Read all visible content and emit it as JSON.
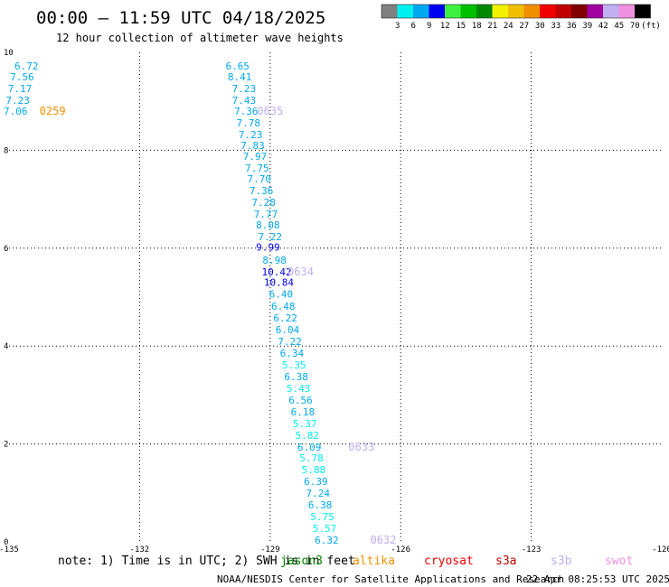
{
  "header": {
    "title": "00:00 – 11:59 UTC 04/18/2025",
    "subtitle": "12 hour collection of altimeter wave heights"
  },
  "colorbar": {
    "unit": "(ft)",
    "bins": [
      {
        "label": "3",
        "color": "#808080"
      },
      {
        "label": "6",
        "color": "#00f0f0"
      },
      {
        "label": "9",
        "color": "#00a8f0"
      },
      {
        "label": "12",
        "color": "#0000f0"
      },
      {
        "label": "15",
        "color": "#40f040"
      },
      {
        "label": "18",
        "color": "#00c000"
      },
      {
        "label": "21",
        "color": "#008800"
      },
      {
        "label": "24",
        "color": "#f0f000"
      },
      {
        "label": "27",
        "color": "#f0c000"
      },
      {
        "label": "30",
        "color": "#f09000"
      },
      {
        "label": "33",
        "color": "#f00000"
      },
      {
        "label": "36",
        "color": "#c00000"
      },
      {
        "label": "39",
        "color": "#800000"
      },
      {
        "label": "42",
        "color": "#a000a0"
      },
      {
        "label": "45",
        "color": "#c0b0f0"
      },
      {
        "label": "70",
        "color": "#f090e0"
      },
      {
        "label": "",
        "color": "#000000"
      }
    ]
  },
  "chart_data": {
    "type": "scatter",
    "xlim": [
      -135,
      -120
    ],
    "ylim": [
      0,
      10
    ],
    "x_ticks": [
      "-135",
      "-132",
      "-129",
      "-126",
      "-123",
      "-120"
    ],
    "y_ticks": [
      "0",
      "2",
      "4",
      "6",
      "8",
      "10"
    ],
    "grid": true,
    "points": [
      {
        "x": -134.6,
        "y": 9.72,
        "v": "6.72",
        "color": "#00a8f0"
      },
      {
        "x": -134.7,
        "y": 9.5,
        "v": "7.56",
        "color": "#00a8f0"
      },
      {
        "x": -134.75,
        "y": 9.26,
        "v": "7.17",
        "color": "#00a8f0"
      },
      {
        "x": -134.8,
        "y": 9.02,
        "v": "7.23",
        "color": "#00a8f0"
      },
      {
        "x": -134.85,
        "y": 8.8,
        "v": "7.06",
        "color": "#00a8f0"
      },
      {
        "x": -129.75,
        "y": 9.72,
        "v": "6.65",
        "color": "#00a8f0"
      },
      {
        "x": -129.7,
        "y": 9.5,
        "v": "8.41",
        "color": "#00a8f0"
      },
      {
        "x": -129.6,
        "y": 9.26,
        "v": "7.23",
        "color": "#00a8f0"
      },
      {
        "x": -129.6,
        "y": 9.02,
        "v": "7.43",
        "color": "#00a8f0"
      },
      {
        "x": -129.55,
        "y": 8.8,
        "v": "7.36",
        "color": "#00a8f0"
      },
      {
        "x": -129.5,
        "y": 8.56,
        "v": "7.78",
        "color": "#00a8f0"
      },
      {
        "x": -129.45,
        "y": 8.32,
        "v": "7.23",
        "color": "#00a8f0"
      },
      {
        "x": -129.4,
        "y": 8.1,
        "v": "7.83",
        "color": "#00a8f0"
      },
      {
        "x": -129.35,
        "y": 7.88,
        "v": "7.97",
        "color": "#00a8f0"
      },
      {
        "x": -129.3,
        "y": 7.64,
        "v": "7.75",
        "color": "#00a8f0"
      },
      {
        "x": -129.25,
        "y": 7.42,
        "v": "7.70",
        "color": "#00a8f0"
      },
      {
        "x": -129.2,
        "y": 7.18,
        "v": "7.36",
        "color": "#00a8f0"
      },
      {
        "x": -129.15,
        "y": 6.94,
        "v": "7.28",
        "color": "#00a8f0"
      },
      {
        "x": -129.1,
        "y": 6.7,
        "v": "7.77",
        "color": "#00a8f0"
      },
      {
        "x": -129.05,
        "y": 6.48,
        "v": "8.08",
        "color": "#00a8f0"
      },
      {
        "x": -129.0,
        "y": 6.24,
        "v": "7.22",
        "color": "#00a8f0"
      },
      {
        "x": -129.05,
        "y": 6.02,
        "v": "9.99",
        "color": "#0000f0"
      },
      {
        "x": -128.9,
        "y": 5.76,
        "v": "8.98",
        "color": "#00a8f0"
      },
      {
        "x": -128.85,
        "y": 5.52,
        "v": "10.42",
        "color": "#0000f0"
      },
      {
        "x": -128.8,
        "y": 5.3,
        "v": "10.84",
        "color": "#0000f0"
      },
      {
        "x": -128.75,
        "y": 5.06,
        "v": "6.40",
        "color": "#00a8f0"
      },
      {
        "x": -128.7,
        "y": 4.82,
        "v": "6.48",
        "color": "#00a8f0"
      },
      {
        "x": -128.65,
        "y": 4.58,
        "v": "6.22",
        "color": "#00a8f0"
      },
      {
        "x": -128.6,
        "y": 4.34,
        "v": "6.04",
        "color": "#00a8f0"
      },
      {
        "x": -128.55,
        "y": 4.1,
        "v": "7.22",
        "color": "#00a8f0"
      },
      {
        "x": -128.5,
        "y": 3.86,
        "v": "6.34",
        "color": "#00a8f0"
      },
      {
        "x": -128.45,
        "y": 3.62,
        "v": "5.35",
        "color": "#00f0f0"
      },
      {
        "x": -128.4,
        "y": 3.38,
        "v": "6.38",
        "color": "#00a8f0"
      },
      {
        "x": -128.35,
        "y": 3.14,
        "v": "5.43",
        "color": "#00f0f0"
      },
      {
        "x": -128.3,
        "y": 2.9,
        "v": "6.56",
        "color": "#00a8f0"
      },
      {
        "x": -128.25,
        "y": 2.66,
        "v": "6.18",
        "color": "#00a8f0"
      },
      {
        "x": -128.2,
        "y": 2.42,
        "v": "5.37",
        "color": "#00f0f0"
      },
      {
        "x": -128.15,
        "y": 2.18,
        "v": "5.82",
        "color": "#00f0f0"
      },
      {
        "x": -128.1,
        "y": 1.94,
        "v": "6.09",
        "color": "#00a8f0"
      },
      {
        "x": -128.05,
        "y": 1.72,
        "v": "5.78",
        "color": "#00f0f0"
      },
      {
        "x": -128.0,
        "y": 1.48,
        "v": "5.88",
        "color": "#00f0f0"
      },
      {
        "x": -127.95,
        "y": 1.24,
        "v": "6.39",
        "color": "#00a8f0"
      },
      {
        "x": -127.9,
        "y": 1.0,
        "v": "7.24",
        "color": "#00a8f0"
      },
      {
        "x": -127.85,
        "y": 0.76,
        "v": "6.38",
        "color": "#00a8f0"
      },
      {
        "x": -127.8,
        "y": 0.52,
        "v": "5.75",
        "color": "#00f0f0"
      },
      {
        "x": -127.75,
        "y": 0.28,
        "v": "5.57",
        "color": "#00f0f0"
      },
      {
        "x": -127.7,
        "y": 0.04,
        "v": "6.32",
        "color": "#00a8f0"
      }
    ],
    "pass_labels": [
      {
        "x": -134.0,
        "y": 8.8,
        "text": "0259",
        "color": "#f09000"
      },
      {
        "x": -129.0,
        "y": 8.8,
        "text": "0635",
        "color": "#c0b0f0"
      },
      {
        "x": -128.3,
        "y": 5.52,
        "text": "0634",
        "color": "#c0b0f0"
      },
      {
        "x": -126.9,
        "y": 1.94,
        "text": "0633",
        "color": "#c0b0f0"
      },
      {
        "x": -126.4,
        "y": 0.04,
        "text": "0632",
        "color": "#c0b0f0"
      }
    ]
  },
  "footer": {
    "note": "note: 1) Time is in UTC; 2) SWH is in feet",
    "satellites": [
      {
        "name": "jason3",
        "color": "#008800"
      },
      {
        "name": "altika",
        "color": "#f09000"
      },
      {
        "name": "cryosat",
        "color": "#f00000"
      },
      {
        "name": "s3a",
        "color": "#c00000"
      },
      {
        "name": "s3b",
        "color": "#c0b0f0"
      },
      {
        "name": "swot",
        "color": "#f090e0"
      }
    ],
    "credit": "NOAA/NESDIS Center for Satellite Applications and Research",
    "timestamp": "22 Apr 08:25:53 UTC 2025"
  }
}
